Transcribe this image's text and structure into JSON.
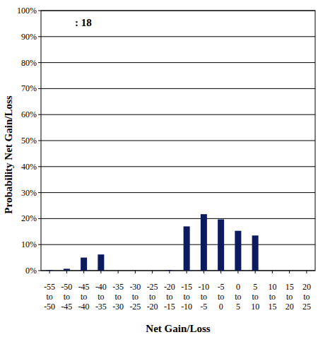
{
  "chart_data": {
    "type": "bar",
    "title": ": 18",
    "x_label": "Net Gain/Loss",
    "y_label": "Probability Net Gain/Loss",
    "categories": [
      "-55 to -50",
      "-50 to -45",
      "-45 to -40",
      "-40 to -35",
      "-35 to -30",
      "-30 to -25",
      "-25 to -20",
      "-20 to -15",
      "-15 to -10",
      "-10 to -5",
      "-5 to 0",
      "0 to 5",
      "5 to 10",
      "10 to 15",
      "15 to 20",
      "20 to 25"
    ],
    "values": [
      0.2,
      0.7,
      5,
      6.2,
      0,
      0,
      0,
      0.2,
      17,
      21.7,
      19.7,
      15.3,
      13.5,
      0,
      0,
      0
    ],
    "color": "#0c1a5e",
    "ylim": [
      0,
      100
    ],
    "yticks": [
      {
        "value": 0,
        "label": "0%"
      },
      {
        "value": 10,
        "label": "10%"
      },
      {
        "value": 20,
        "label": "20%"
      },
      {
        "value": 30,
        "label": "30%"
      },
      {
        "value": 40,
        "label": "40%"
      },
      {
        "value": 50,
        "label": "50%"
      },
      {
        "value": 60,
        "label": "60%"
      },
      {
        "value": 70,
        "label": "70%"
      },
      {
        "value": 80,
        "label": "80%"
      },
      {
        "value": 90,
        "label": "90%"
      },
      {
        "value": 100,
        "label": "100%"
      }
    ],
    "grid": true
  }
}
